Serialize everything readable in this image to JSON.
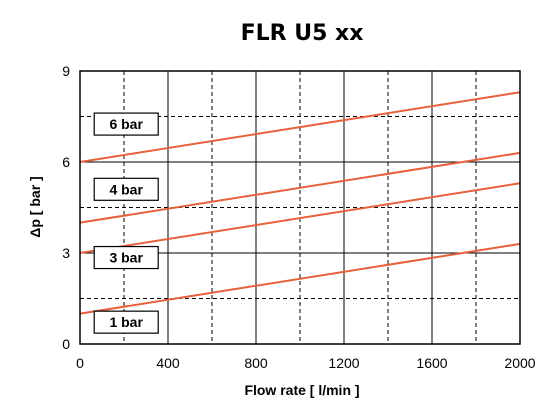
{
  "chart_data": {
    "type": "line",
    "title": "FLR U5 xx",
    "xlabel": "Flow rate [ l/min ]",
    "ylabel": "Δp [ bar ]",
    "xlim": [
      0,
      2000
    ],
    "ylim": [
      0,
      9
    ],
    "x_ticks": [
      0,
      400,
      800,
      1200,
      1600,
      2000
    ],
    "y_ticks": [
      0,
      3,
      6,
      9
    ],
    "x_grid_major": [
      400,
      800,
      1200,
      1600
    ],
    "x_grid_minor": [
      200,
      600,
      1000,
      1400,
      1800
    ],
    "y_grid_major": [
      3,
      6
    ],
    "y_grid_minor": [
      1.5,
      4.5,
      7.5
    ],
    "grid": true,
    "legend": "inline labels",
    "line_color": "#e8603c",
    "series": [
      {
        "name": "6 bar",
        "x": [
          0,
          2000
        ],
        "y": [
          6.0,
          8.3
        ],
        "label_at": [
          210,
          7.25
        ]
      },
      {
        "name": "4 bar",
        "x": [
          0,
          2000
        ],
        "y": [
          4.0,
          6.3
        ],
        "label_at": [
          210,
          5.1
        ]
      },
      {
        "name": "3 bar",
        "x": [
          0,
          2000
        ],
        "y": [
          3.0,
          5.3
        ],
        "label_at": [
          210,
          2.85
        ]
      },
      {
        "name": "1 bar",
        "x": [
          0,
          2000
        ],
        "y": [
          1.0,
          3.3
        ],
        "label_at": [
          210,
          0.72
        ]
      }
    ]
  }
}
